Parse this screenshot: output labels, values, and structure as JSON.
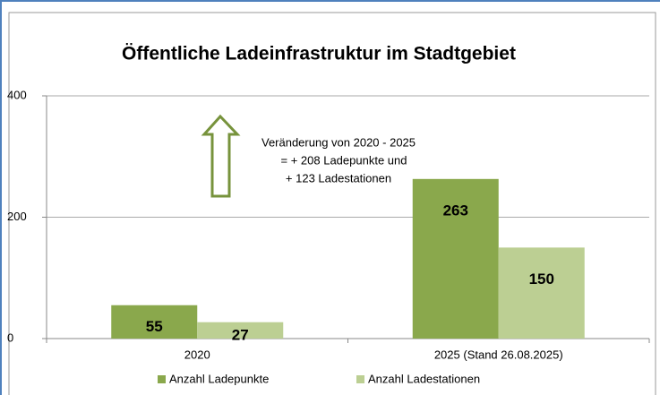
{
  "chart_data": {
    "type": "bar",
    "title": "Öffentliche Ladeinfrastruktur im Stadtgebiet",
    "categories": [
      "2020",
      "2025 (Stand 26.08.2025)"
    ],
    "series": [
      {
        "name": "Anzahl Ladepunkte",
        "color": "#8aa84c",
        "values": [
          55,
          263
        ]
      },
      {
        "name": "Anzahl Ladestationen",
        "color": "#bccf93",
        "values": [
          27,
          150
        ]
      }
    ],
    "ylim": [
      0,
      400
    ],
    "yticks": [
      0,
      200,
      400
    ],
    "grid": true,
    "legend": "bottom",
    "annotation": [
      "Veränderung von 2020 - 2025",
      "= + 208 Ladepunkte  und",
      "+ 123 Ladestationen"
    ]
  }
}
